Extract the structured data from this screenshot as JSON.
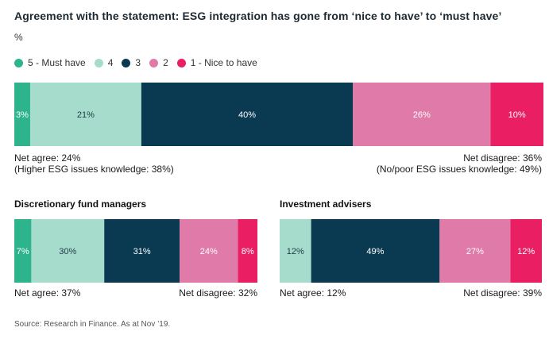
{
  "header": {
    "title": "Agreement with the statement: ESG integration has gone from ‘nice to have’ to ‘must have’",
    "unit": "%"
  },
  "legend": [
    {
      "label": "5 - Must have",
      "color": "#2db48d"
    },
    {
      "label": "4",
      "color": "#a5dccb"
    },
    {
      "label": "3",
      "color": "#0a3a52"
    },
    {
      "label": "2",
      "color": "#e07aa8"
    },
    {
      "label": "1 - Nice to have",
      "color": "#ea1e63"
    }
  ],
  "colors": {
    "5": "#2db48d",
    "4": "#a5dccb",
    "3": "#0a3a52",
    "2": "#e07aa8",
    "1": "#ea1e63",
    "label_dark": "#1f3b47",
    "label_light": "#ffffff"
  },
  "chart_data": [
    {
      "type": "bar",
      "orientation": "horizontal-stacked-100",
      "title": "",
      "categories": [
        "5 - Must have",
        "4",
        "3",
        "2",
        "1 - Nice to have"
      ],
      "values": [
        3,
        21,
        40,
        26,
        10
      ],
      "labels": [
        "3%",
        "21%",
        "40%",
        "26%",
        "10%"
      ],
      "notes": {
        "left": [
          "Net agree: 24%",
          "(Higher ESG issues knowledge: 38%)"
        ],
        "right": [
          "Net disagree: 36%",
          "(No/poor ESG issues knowledge: 49%)"
        ]
      }
    },
    {
      "type": "bar",
      "orientation": "horizontal-stacked-100",
      "title": "Discretionary fund managers",
      "categories": [
        "5 - Must have",
        "4",
        "3",
        "2",
        "1 - Nice to have"
      ],
      "values": [
        7,
        30,
        31,
        24,
        8
      ],
      "labels": [
        "7%",
        "30%",
        "31%",
        "24%",
        "8%"
      ],
      "notes": {
        "left": [
          "Net agree: 37%"
        ],
        "right": [
          "Net disagree: 32%"
        ]
      }
    },
    {
      "type": "bar",
      "orientation": "horizontal-stacked-100",
      "title": "Investment advisers",
      "categories": [
        "4",
        "3",
        "2",
        "1 - Nice to have"
      ],
      "values": [
        12,
        49,
        27,
        12
      ],
      "labels": [
        "12%",
        "49%",
        "27%",
        "12%"
      ],
      "notes": {
        "left": [
          "Net agree: 12%"
        ],
        "right": [
          "Net disagree: 39%"
        ]
      }
    }
  ],
  "footer": {
    "source": "Source: Research in Finance. As at Nov ’19."
  }
}
